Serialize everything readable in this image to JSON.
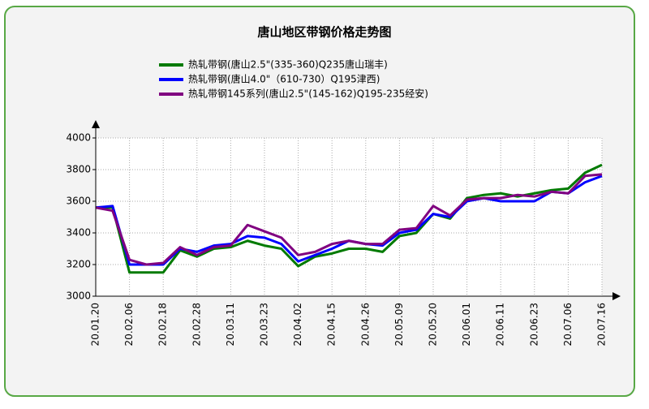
{
  "chart_data": {
    "type": "line",
    "title": "唐山地区带钢价格走势图",
    "categories": [
      "20.01.20",
      null,
      "20.02.06",
      null,
      "20.02.18",
      null,
      "20.02.28",
      null,
      "20.03.11",
      null,
      "20.03.23",
      null,
      "20.04.02",
      null,
      "20.04.15",
      null,
      "20.04.26",
      null,
      "20.05.09",
      null,
      "20.05.20",
      null,
      "20.06.01",
      null,
      "20.06.11",
      null,
      "20.06.23",
      null,
      "20.07.06",
      null,
      "20.07.16"
    ],
    "series": [
      {
        "name": "热轧带钢(唐山2.5\"(335-360)Q235唐山瑞丰)",
        "color": "#007a00",
        "values": [
          3560,
          3560,
          3150,
          3150,
          3150,
          3290,
          3250,
          3300,
          3310,
          3350,
          3320,
          3300,
          3190,
          3250,
          3270,
          3300,
          3300,
          3280,
          3380,
          3400,
          3520,
          3490,
          3620,
          3640,
          3650,
          3630,
          3650,
          3670,
          3680,
          3780,
          3830
        ]
      },
      {
        "name": "热轧带钢(唐山4.0\"（610-730）Q195津西)",
        "color": "#0000ff",
        "values": [
          3560,
          3570,
          3200,
          3200,
          3200,
          3300,
          3280,
          3320,
          3330,
          3380,
          3370,
          3330,
          3220,
          3260,
          3300,
          3350,
          3330,
          3320,
          3400,
          3420,
          3520,
          3500,
          3600,
          3620,
          3600,
          3600,
          3600,
          3660,
          3650,
          3720,
          3760
        ]
      },
      {
        "name": "热轧带钢145系列(唐山2.5\"(145-162)Q195-235经安)",
        "color": "#800080",
        "values": [
          3560,
          3540,
          3230,
          3200,
          3210,
          3310,
          3260,
          3310,
          3320,
          3450,
          3410,
          3370,
          3260,
          3280,
          3330,
          3350,
          3330,
          3330,
          3420,
          3430,
          3570,
          3510,
          3610,
          3620,
          3620,
          3640,
          3630,
          3660,
          3650,
          3760,
          3770
        ]
      }
    ],
    "ylim": [
      3000,
      4000
    ],
    "yticks": [
      3000,
      3200,
      3400,
      3600,
      3800,
      4000
    ],
    "grid": true
  }
}
